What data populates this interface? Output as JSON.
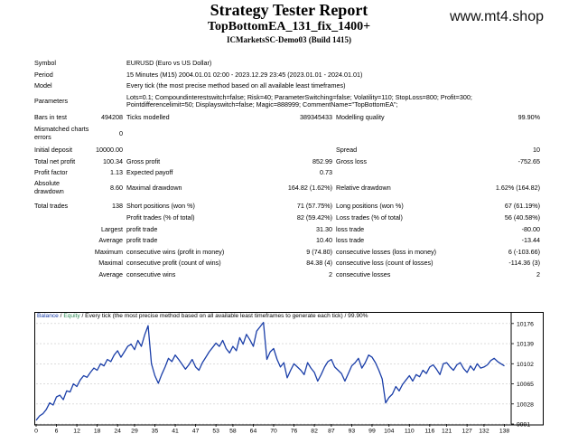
{
  "header": {
    "title": "Strategy Tester Report",
    "ea_name": "TopBottomEA_131_fix_1400+",
    "server": "ICMarketsSC-Demo03 (Build 1415)",
    "watermark": "www.mt4.shop"
  },
  "info": {
    "symbol_label": "Symbol",
    "symbol_value": "EURUSD (Euro vs US Dollar)",
    "period_label": "Period",
    "period_value": "15 Minutes (M15) 2004.01.01 02:00 - 2023.12.29 23:45 (2023.01.01 - 2024.01.01)",
    "model_label": "Model",
    "model_value": "Every tick (the most precise method based on all available least timeframes)",
    "params_label": "Parameters",
    "params_line1": "Lots=0.1; Compoundinterestswitch=false; Risk=40; ParameterSwitching=false; Volatility=110; StopLoss=800; Profit=300;",
    "params_line2": "Pointdifferencelimit=50; Displayswitch=false; Magic=888999; CommentName=\"TopBottomEA\";"
  },
  "stats": {
    "bars_label": "Bars in test",
    "bars_value": "494208",
    "ticks_label": "Ticks modelled",
    "ticks_value": "389345433",
    "quality_label": "Modelling quality",
    "quality_value": "99.90%",
    "mismatch_label_1": "Mismatched charts",
    "mismatch_label_2": "errors",
    "mismatch_value": "0",
    "deposit_label": "Initial deposit",
    "deposit_value": "10000.00",
    "spread_label": "Spread",
    "spread_value": "10",
    "netprofit_label": "Total net profit",
    "netprofit_value": "100.34",
    "grossprofit_label": "Gross profit",
    "grossprofit_value": "852.99",
    "grossloss_label": "Gross loss",
    "grossloss_value": "-752.65",
    "pf_label": "Profit factor",
    "pf_value": "1.13",
    "payoff_label": "Expected payoff",
    "payoff_value": "0.73",
    "absdd_label_1": "Absolute",
    "absdd_label_2": "drawdown",
    "absdd_value": "8.60",
    "maxdd_label": "Maximal drawdown",
    "maxdd_value": "164.82 (1.62%)",
    "reldd_label": "Relative drawdown",
    "reldd_value": "1.62% (164.82)",
    "trades_label": "Total trades",
    "trades_value": "138",
    "short_label": "Short positions (won %)",
    "short_value": "71 (57.75%)",
    "long_label": "Long positions (won %)",
    "long_value": "67 (61.19%)",
    "profit_trades_label": "Profit trades (% of total)",
    "profit_trades_value": "82 (59.42%)",
    "loss_trades_label": "Loss trades (% of total)",
    "loss_trades_value": "56 (40.58%)",
    "largest_label": "Largest",
    "average_label": "Average",
    "maximum_label": "Maximum",
    "maximal_label": "Maximal",
    "lg_profit_label": "profit trade",
    "lg_profit_value": "31.30",
    "lg_loss_label": "loss trade",
    "lg_loss_value": "-80.00",
    "av_profit_label": "profit trade",
    "av_profit_value": "10.40",
    "av_loss_label": "loss trade",
    "av_loss_value": "-13.44",
    "mx_wins_label": "consecutive wins (profit in money)",
    "mx_wins_value": "9 (74.80)",
    "mx_losses_label": "consecutive losses (loss in money)",
    "mx_losses_value": "6 (-103.66)",
    "ml_profit_label": "consecutive profit (count of wins)",
    "ml_profit_value": "84.38 (4)",
    "ml_loss_label": "consecutive loss (count of losses)",
    "ml_loss_value": "-114.36 (3)",
    "av_wins_label": "consecutive wins",
    "av_wins_value": "2",
    "av_losses_label": "consecutive losses",
    "av_losses_value": "2"
  },
  "chart_legend": {
    "balance": "Balance",
    "sep": " / ",
    "equity": "Equity",
    "rest": " / Every tick (the most precise method based on all available least timeframes to generate each tick) / 99.90%"
  },
  "chart_data": {
    "type": "line",
    "x_ticks": [
      "0",
      "6",
      "12",
      "18",
      "24",
      "29",
      "35",
      "41",
      "47",
      "53",
      "58",
      "64",
      "70",
      "76",
      "82",
      "87",
      "93",
      "99",
      "104",
      "110",
      "116",
      "121",
      "127",
      "132",
      "138"
    ],
    "y_ticks": [
      "10176",
      "10139",
      "10102",
      "10065",
      "10028",
      "9991"
    ],
    "ylim": [
      9991,
      10194
    ],
    "xlim": [
      0,
      140
    ],
    "colors": {
      "balance": "#1a3ea8",
      "grid": "#c8c8c8"
    },
    "x": [
      0,
      1,
      2,
      3,
      4,
      5,
      6,
      7,
      8,
      9,
      10,
      11,
      12,
      13,
      14,
      15,
      16,
      17,
      18,
      19,
      20,
      21,
      22,
      23,
      24,
      25,
      26,
      27,
      28,
      29,
      30,
      31,
      32,
      33,
      34,
      35,
      36,
      37,
      38,
      39,
      40,
      41,
      42,
      43,
      44,
      45,
      46,
      47,
      48,
      49,
      50,
      51,
      52,
      53,
      54,
      55,
      56,
      57,
      58,
      59,
      60,
      61,
      62,
      63,
      64,
      65,
      66,
      67,
      68,
      69,
      70,
      71,
      72,
      73,
      74,
      75,
      76,
      77,
      78,
      79,
      80,
      81,
      82,
      83,
      84,
      85,
      86,
      87,
      88,
      89,
      90,
      91,
      92,
      93,
      94,
      95,
      96,
      97,
      98,
      99,
      100,
      101,
      102,
      103,
      104,
      105,
      106,
      107,
      108,
      109,
      110,
      111,
      112,
      113,
      114,
      115,
      116,
      117,
      118,
      119,
      120,
      121,
      122,
      123,
      124,
      125,
      126,
      127,
      128,
      129,
      130,
      131,
      132,
      133,
      134,
      135,
      136,
      137,
      138
    ],
    "values": [
      9998,
      10006,
      10010,
      10018,
      10030,
      10026,
      10041,
      10044,
      10036,
      10052,
      10050,
      10065,
      10060,
      10072,
      10080,
      10077,
      10086,
      10094,
      10090,
      10102,
      10098,
      10110,
      10106,
      10118,
      10126,
      10114,
      10124,
      10134,
      10138,
      10128,
      10145,
      10134,
      10155,
      10172,
      10102,
      10080,
      10066,
      10082,
      10096,
      10112,
      10106,
      10118,
      10110,
      10101,
      10092,
      10100,
      10110,
      10096,
      10090,
      10104,
      10114,
      10124,
      10132,
      10140,
      10134,
      10145,
      10130,
      10122,
      10134,
      10126,
      10150,
      10138,
      10156,
      10146,
      10134,
      10162,
      10170,
      10178,
      10110,
      10124,
      10130,
      10110,
      10096,
      10104,
      10076,
      10090,
      10102,
      10096,
      10090,
      10082,
      10104,
      10094,
      10086,
      10070,
      10082,
      10096,
      10106,
      10110,
      10096,
      10090,
      10084,
      10070,
      10084,
      10098,
      10104,
      10112,
      10094,
      10104,
      10118,
      10114,
      10104,
      10090,
      10074,
      10030,
      10040,
      10046,
      10060,
      10052,
      10064,
      10072,
      10080,
      10070,
      10082,
      10078,
      10090,
      10084,
      10096,
      10100,
      10092,
      10082,
      10102,
      10104,
      10096,
      10090,
      10100,
      10104,
      10093,
      10086,
      10098,
      10090,
      10102,
      10094,
      10096,
      10100,
      10108,
      10112,
      10106,
      10102,
      10098
    ]
  }
}
